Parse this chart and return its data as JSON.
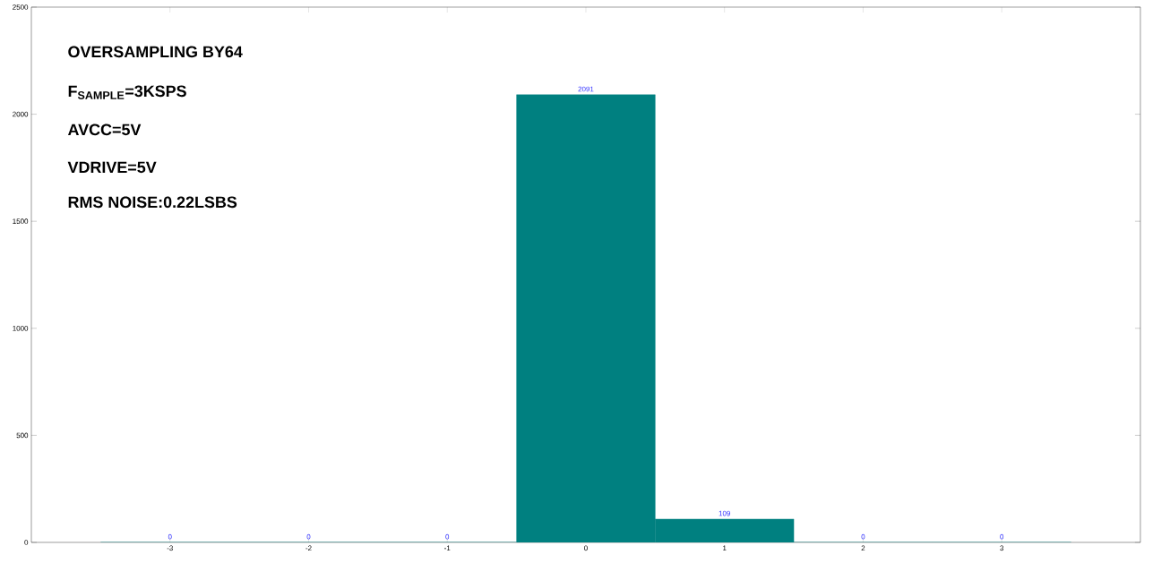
{
  "chart_data": {
    "type": "bar",
    "x": [
      -3,
      -2,
      -1,
      0,
      1,
      2,
      3
    ],
    "values": [
      0,
      0,
      0,
      2091,
      109,
      0,
      0
    ],
    "color": "#008080",
    "xlim": [
      -4,
      4
    ],
    "xticks": [
      -3,
      -2,
      -1,
      0,
      1,
      2,
      3
    ],
    "ylim": [
      0,
      2500
    ],
    "yticks": [
      0,
      500,
      1000,
      1500,
      2000,
      2500
    ],
    "data_labels": true,
    "annotations": [
      "OVERSAMPLING BY64",
      "F$_{SAMPLE}$=3KSPS",
      "AVCC=5V",
      "VDRIVE=5V",
      "RMS NOISE:0.22LSBS"
    ]
  }
}
